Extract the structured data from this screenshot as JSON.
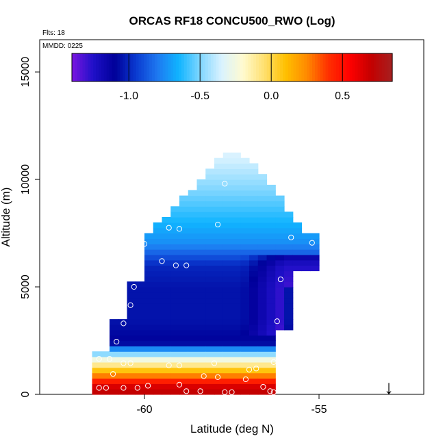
{
  "chart_data": {
    "type": "heatmap",
    "title": "ORCAS RF18 CONCU500_RWO (Log)",
    "top_notes": [
      "Flts: 18",
      "MMDD: 0225"
    ],
    "xlabel": "Latitude (deg N)",
    "ylabel": "Altitude (m)",
    "xlim": [
      -63,
      -52
    ],
    "ylim": [
      0,
      16500
    ],
    "x_ticks": [
      -60,
      -55
    ],
    "x_tick_labels": [
      "-60",
      "-55"
    ],
    "y_ticks": [
      0,
      5000,
      10000,
      15000
    ],
    "y_tick_labels": [
      "0",
      "5000",
      "10000",
      "15000"
    ],
    "colorbar": {
      "range": [
        -1.4,
        0.85
      ],
      "ticks": [
        -1.0,
        -0.5,
        0.0,
        0.5
      ],
      "tick_labels": [
        "-1.0",
        "-0.5",
        "0.0",
        "0.5"
      ],
      "colors": [
        "#7b16e0",
        "#1f10c8",
        "#000099",
        "#0a3ad0",
        "#1e78f0",
        "#10b4ff",
        "#7fd6ff",
        "#d9f2ff",
        "#fffbd0",
        "#ffe070",
        "#ffc000",
        "#ff8a00",
        "#ff3000",
        "#ff0000",
        "#c40000",
        "#a52020"
      ]
    },
    "grid": false,
    "legend": "none",
    "arrow_marker": {
      "latitude": -53.0,
      "altitude": 0,
      "symbol": "↓"
    },
    "layer_profile": [
      {
        "alt": 300,
        "value": 0.7
      },
      {
        "alt": 700,
        "value": 0.4
      },
      {
        "alt": 1100,
        "value": 0.1
      },
      {
        "alt": 1450,
        "value": -0.15
      },
      {
        "alt": 1700,
        "value": -0.3
      },
      {
        "alt": 2000,
        "value": -0.6
      },
      {
        "alt": 2400,
        "value": -1.1
      },
      {
        "alt": 3500,
        "value": -1.05
      },
      {
        "alt": 5000,
        "value": -1.05
      },
      {
        "alt": 6000,
        "value": -1.0
      },
      {
        "alt": 7000,
        "value": -0.75
      },
      {
        "alt": 9000,
        "value": -0.55
      },
      {
        "alt": 11000,
        "value": -0.35
      }
    ],
    "sample_points": [
      {
        "lat": -61.3,
        "alt": 300
      },
      {
        "lat": -61.1,
        "alt": 300
      },
      {
        "lat": -60.6,
        "alt": 300
      },
      {
        "lat": -60.2,
        "alt": 300
      },
      {
        "lat": -59.9,
        "alt": 400
      },
      {
        "lat": -59.0,
        "alt": 450
      },
      {
        "lat": -58.8,
        "alt": 150
      },
      {
        "lat": -58.4,
        "alt": 150
      },
      {
        "lat": -57.7,
        "alt": 100
      },
      {
        "lat": -57.5,
        "alt": 100
      },
      {
        "lat": -56.6,
        "alt": 350
      },
      {
        "lat": -56.4,
        "alt": 150
      },
      {
        "lat": -56.3,
        "alt": 100
      },
      {
        "lat": -57.1,
        "alt": 700
      },
      {
        "lat": -57.9,
        "alt": 800
      },
      {
        "lat": -58.3,
        "alt": 850
      },
      {
        "lat": -60.9,
        "alt": 950
      },
      {
        "lat": -57.0,
        "alt": 1150
      },
      {
        "lat": -56.8,
        "alt": 1200
      },
      {
        "lat": -60.6,
        "alt": 1450
      },
      {
        "lat": -60.4,
        "alt": 1450
      },
      {
        "lat": -59.3,
        "alt": 1350
      },
      {
        "lat": -59.0,
        "alt": 1350
      },
      {
        "lat": -58.0,
        "alt": 1450
      },
      {
        "lat": -56.3,
        "alt": 1500
      },
      {
        "lat": -61.0,
        "alt": 1650
      },
      {
        "lat": -61.3,
        "alt": 1650
      },
      {
        "lat": -60.8,
        "alt": 2450
      },
      {
        "lat": -60.6,
        "alt": 3300
      },
      {
        "lat": -60.4,
        "alt": 4150
      },
      {
        "lat": -60.3,
        "alt": 5000
      },
      {
        "lat": -60.1,
        "alt": 5950
      },
      {
        "lat": -59.5,
        "alt": 6200
      },
      {
        "lat": -59.1,
        "alt": 6000
      },
      {
        "lat": -58.8,
        "alt": 6000
      },
      {
        "lat": -56.2,
        "alt": 3400
      },
      {
        "lat": -56.1,
        "alt": 5350
      },
      {
        "lat": -60.0,
        "alt": 7000
      },
      {
        "lat": -59.3,
        "alt": 7750
      },
      {
        "lat": -59.0,
        "alt": 7700
      },
      {
        "lat": -57.9,
        "alt": 7900
      },
      {
        "lat": -55.8,
        "alt": 7300
      },
      {
        "lat": -55.2,
        "alt": 7050
      },
      {
        "lat": -57.7,
        "alt": 9800
      },
      {
        "lat": -57.1,
        "alt": 11300
      }
    ]
  }
}
